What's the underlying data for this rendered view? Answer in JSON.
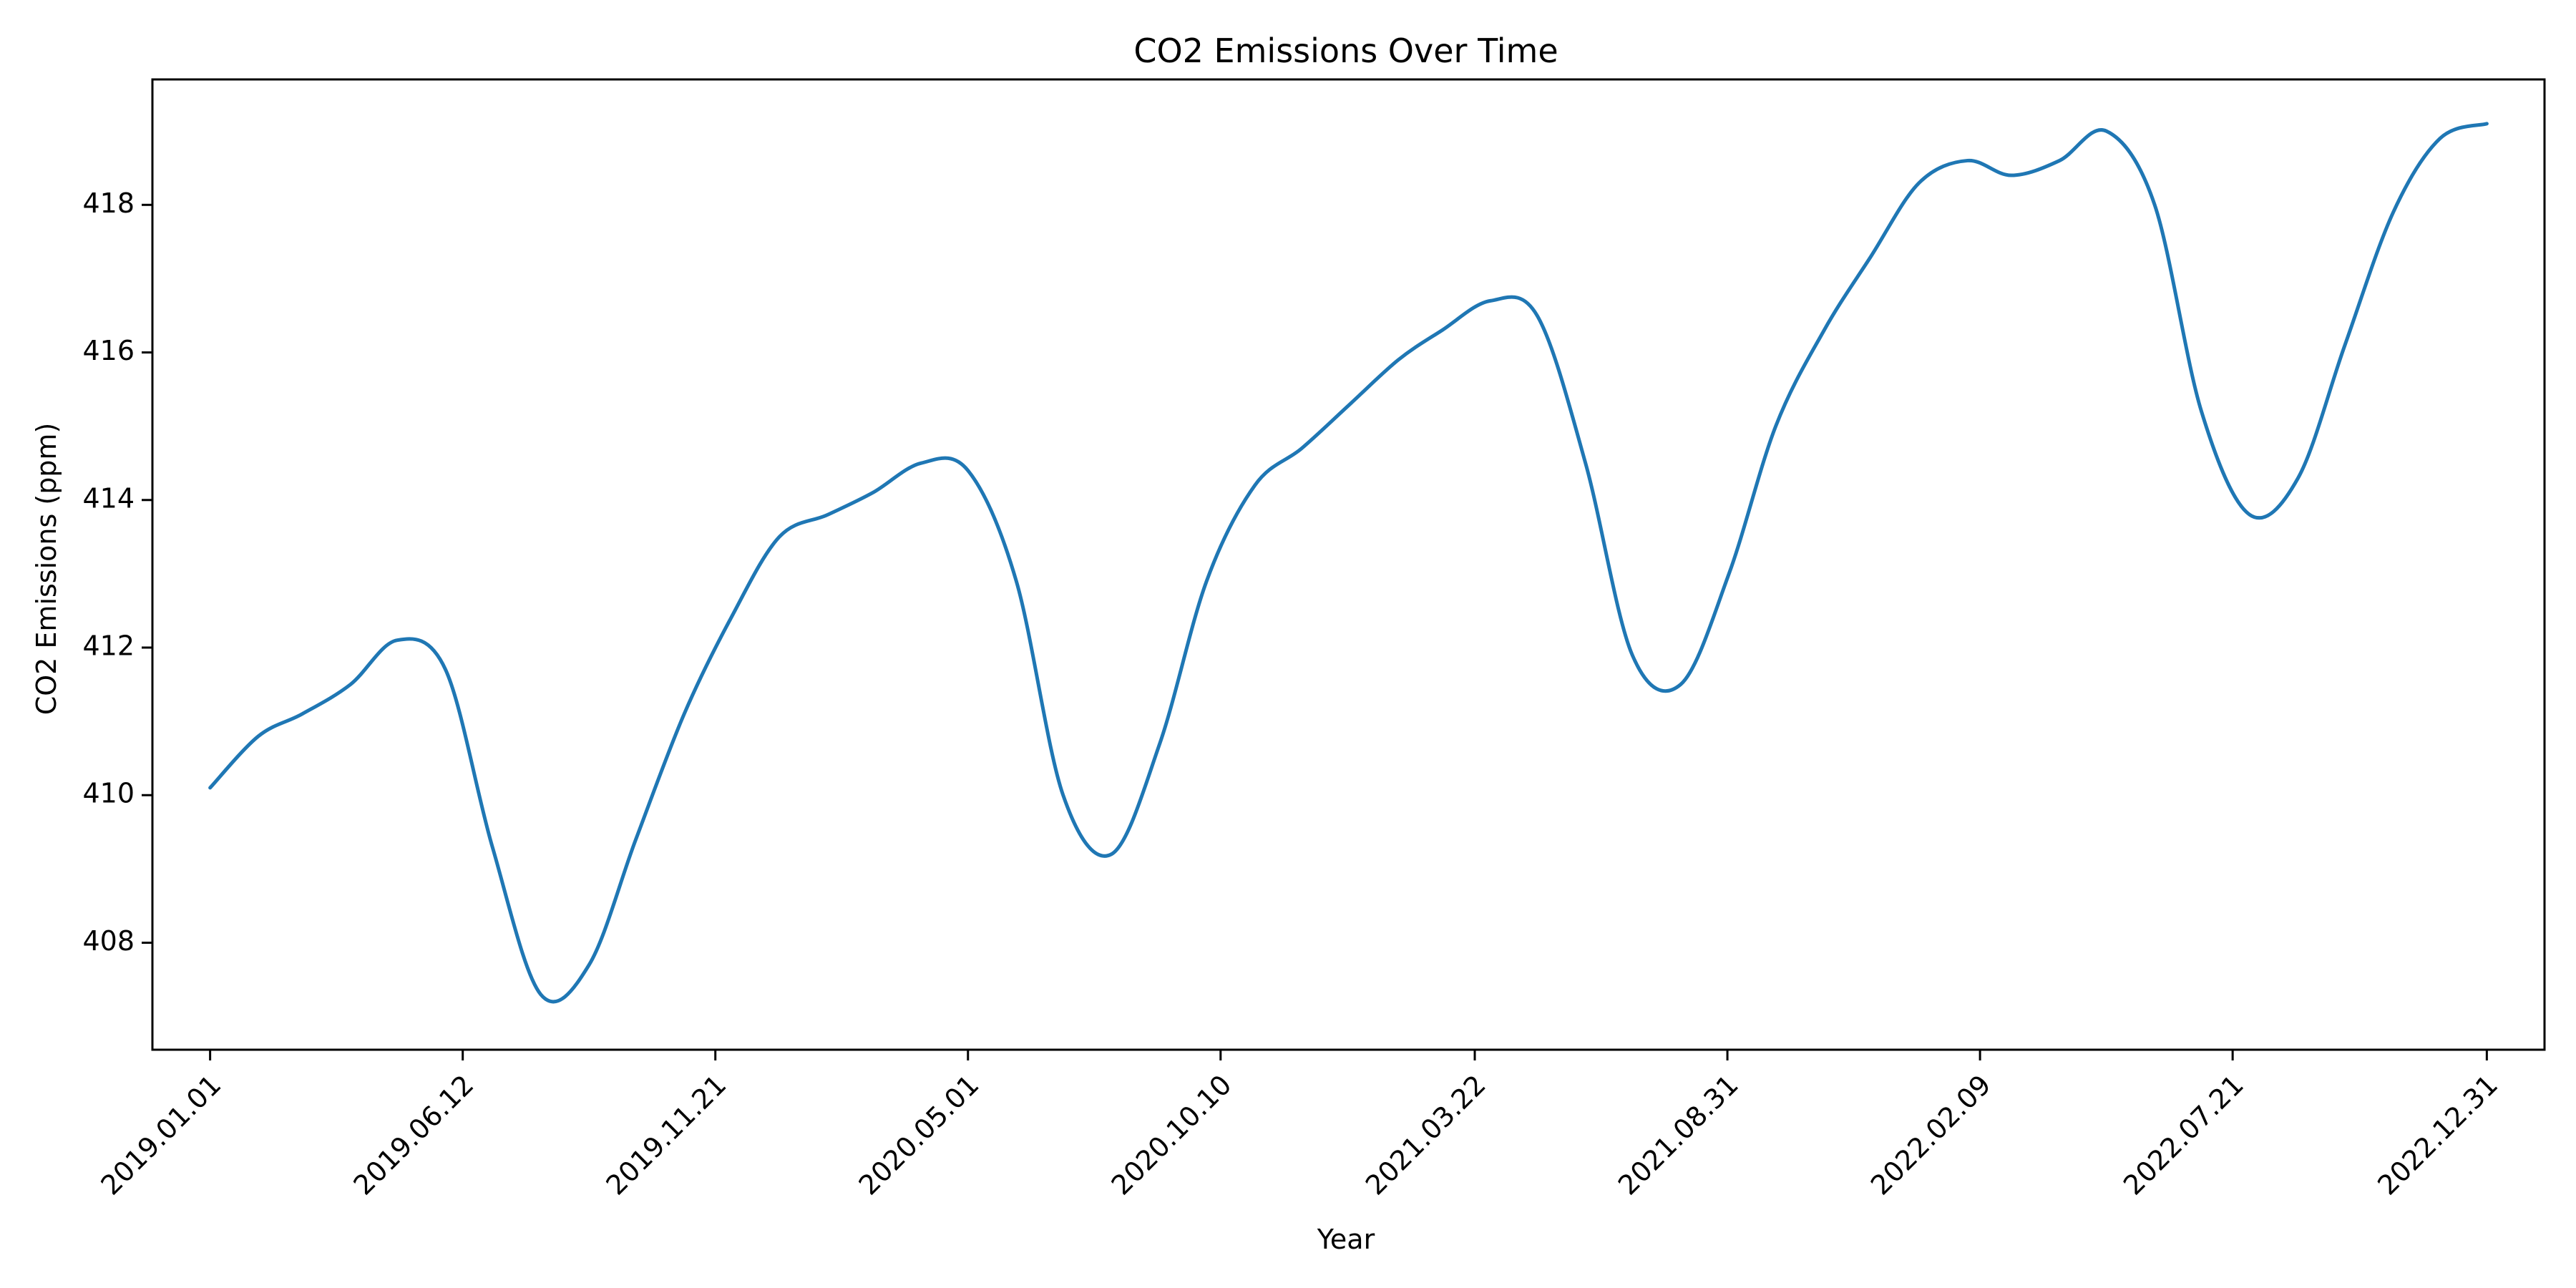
{
  "chart_data": {
    "type": "line",
    "title": "CO2 Emissions Over Time",
    "xlabel": "Year",
    "ylabel": "CO2 Emissions (ppm)",
    "xlim": [
      "2018.11.25",
      "2023.02.06"
    ],
    "ylim": [
      406.55,
      419.7
    ],
    "grid": false,
    "legend": "none",
    "x_tick_labels": [
      "2019.01.01",
      "2019.06.12",
      "2019.11.21",
      "2020.05.01",
      "2020.10.10",
      "2021.03.22",
      "2021.08.31",
      "2022.02.09",
      "2022.07.21",
      "2022.12.31"
    ],
    "y_ticks": [
      408,
      410,
      412,
      414,
      416,
      418
    ],
    "series": [
      {
        "color": "#1f77b4",
        "x": [
          "2019.01.01",
          "2019.02.01",
          "2019.03.01",
          "2019.04.01",
          "2019.05.01",
          "2019.06.01",
          "2019.07.01",
          "2019.08.01",
          "2019.09.01",
          "2019.10.01",
          "2019.11.01",
          "2019.12.01",
          "2020.01.01",
          "2020.02.01",
          "2020.03.01",
          "2020.04.01",
          "2020.05.01",
          "2020.06.01",
          "2020.07.01",
          "2020.08.01",
          "2020.09.01",
          "2020.10.01",
          "2020.11.01",
          "2020.12.01",
          "2021.01.01",
          "2021.02.01",
          "2021.03.01",
          "2021.04.01",
          "2021.05.01",
          "2021.06.01",
          "2021.07.01",
          "2021.08.01",
          "2021.09.01",
          "2021.10.01",
          "2021.11.01",
          "2021.12.01",
          "2022.01.01",
          "2022.02.01",
          "2022.03.01",
          "2022.04.01",
          "2022.05.01",
          "2022.06.01",
          "2022.07.01",
          "2022.08.01",
          "2022.09.01",
          "2022.10.01",
          "2022.11.01",
          "2022.12.01",
          "2022.12.31"
        ],
        "y": [
          410.1,
          410.8,
          411.1,
          411.5,
          412.1,
          411.7,
          409.3,
          407.3,
          407.7,
          409.4,
          411.1,
          412.4,
          413.5,
          413.8,
          414.1,
          414.5,
          414.4,
          412.9,
          410.0,
          409.2,
          410.7,
          412.9,
          414.2,
          414.7,
          415.3,
          415.9,
          416.3,
          416.7,
          416.5,
          414.5,
          411.9,
          411.5,
          413.0,
          415.0,
          416.3,
          417.3,
          418.3,
          418.6,
          418.4,
          418.6,
          419.0,
          418.0,
          415.2,
          413.8,
          414.3,
          416.1,
          417.9,
          418.9,
          419.1
        ]
      }
    ]
  }
}
